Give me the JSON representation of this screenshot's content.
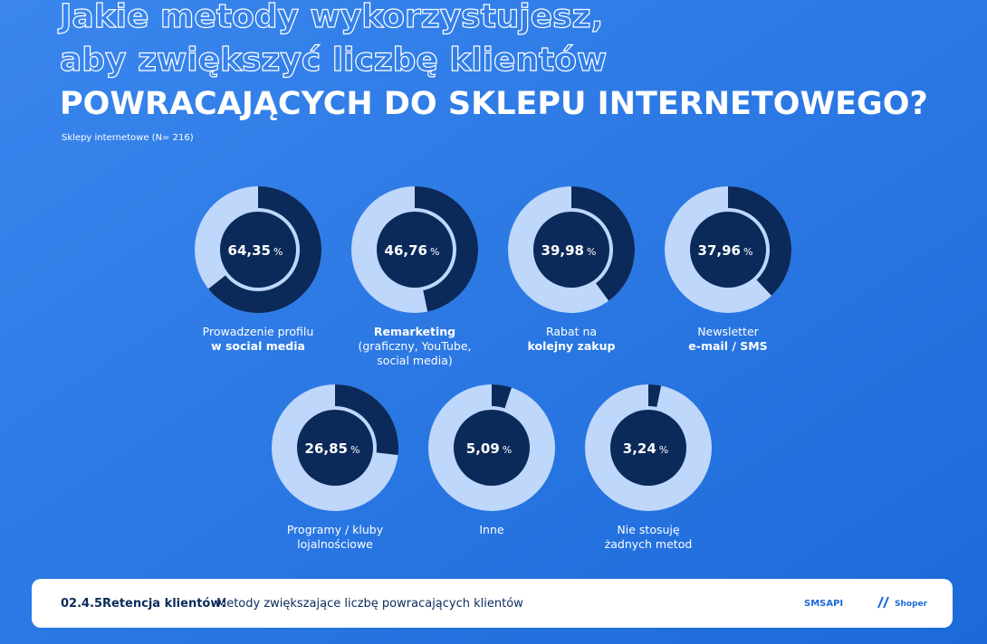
{
  "chart_data": {
    "type": "donut",
    "title_lines": [
      "Jakie metody wykorzystujesz,",
      "aby zwiększyć liczbę klientów",
      "POWRACAJĄCYCH DO SKLEPU INTERNETOWEGO?"
    ],
    "subtitle": "Sklepy internetowe (N= 216)",
    "categories": [
      [
        {
          "text": "Prowadzenie profilu",
          "bold": false
        },
        {
          "text": "w social media",
          "bold": true
        }
      ],
      [
        {
          "text": "Remarketing",
          "bold": true
        },
        {
          "text": "(graficzny, YouTube,",
          "bold": false
        },
        {
          "text": "social media)",
          "bold": false
        }
      ],
      [
        {
          "text": "Rabat na",
          "bold": false
        },
        {
          "text": "kolejny zakup",
          "bold": true
        }
      ],
      [
        {
          "text": "Newsletter",
          "bold": false
        },
        {
          "text": "e-mail / SMS",
          "bold": true
        }
      ],
      [
        {
          "text": "Programy / kluby",
          "bold": false
        },
        {
          "text": "lojalnościowe",
          "bold": false
        }
      ],
      [
        {
          "text": "Inne",
          "bold": false
        }
      ],
      [
        {
          "text": "Nie stosuję",
          "bold": false
        },
        {
          "text": "żadnych metod",
          "bold": false
        }
      ]
    ],
    "values": [
      64.35,
      46.76,
      39.98,
      37.96,
      26.85,
      5.09,
      3.24
    ],
    "value_labels": [
      "64,35",
      "46,76",
      "39,98",
      "37,96",
      "26,85",
      "5,09",
      "3,24"
    ],
    "value_unit": "%",
    "value_max": 100,
    "color": "#0b2a5a",
    "rest_color": "#bed7fb"
  },
  "footer": {
    "code": "02.4.5",
    "section": "Retencja klientów:",
    "description": "Metody zwiększające liczbę powracających klientów",
    "logos": [
      "SMSAPI",
      "Shoper"
    ]
  }
}
